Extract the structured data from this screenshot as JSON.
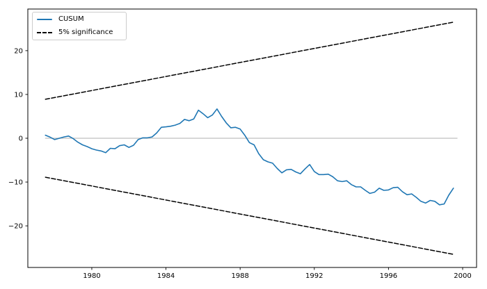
{
  "figure": {
    "background": "#ffffff",
    "frame_color": "#000000",
    "tick_label_color": "#000000"
  },
  "legend": {
    "position": "upper-left",
    "items": [
      {
        "label": "CUSUM",
        "line_style": "solid",
        "color": "#1f77b4"
      },
      {
        "label": "5% significance",
        "line_style": "dashed",
        "color": "#000000"
      }
    ]
  },
  "chart_data": {
    "type": "line",
    "title": "",
    "xlabel": "",
    "ylabel": "",
    "xlim": [
      1976.55,
      2000.75
    ],
    "ylim": [
      -29.5,
      29.5
    ],
    "xticks": [
      1980,
      1984,
      1988,
      1992,
      1996,
      2000
    ],
    "yticks": [
      -20,
      -10,
      0,
      10,
      20
    ],
    "grid": false,
    "legend_position": "upper-left",
    "series": [
      {
        "id": "zero-line",
        "name": "zero reference",
        "color": "#bfbfbf",
        "style": "solid",
        "width": 1.3,
        "x": [
          1977.5,
          1999.7
        ],
        "y": [
          0,
          0
        ]
      },
      {
        "id": "significance-upper",
        "name": "5% significance (upper)",
        "color": "#000000",
        "style": "dashed",
        "width": 1.5,
        "x": [
          1977.5,
          1999.5
        ],
        "y": [
          8.9,
          26.5
        ]
      },
      {
        "id": "significance-lower",
        "name": "5% significance (lower)",
        "color": "#000000",
        "style": "dashed",
        "width": 1.5,
        "x": [
          1977.5,
          1999.5
        ],
        "y": [
          -8.9,
          -26.5
        ]
      },
      {
        "id": "cusum",
        "name": "CUSUM",
        "color": "#1f77b4",
        "style": "solid",
        "width": 1.6,
        "x": [
          1977.5,
          1977.75,
          1978.0,
          1978.25,
          1978.5,
          1978.75,
          1979.0,
          1979.25,
          1979.5,
          1979.75,
          1980.0,
          1980.25,
          1980.5,
          1980.75,
          1981.0,
          1981.25,
          1981.5,
          1981.75,
          1982.0,
          1982.25,
          1982.5,
          1982.75,
          1983.0,
          1983.25,
          1983.5,
          1983.75,
          1984.0,
          1984.25,
          1984.5,
          1984.75,
          1985.0,
          1985.25,
          1985.5,
          1985.75,
          1986.0,
          1986.25,
          1986.5,
          1986.75,
          1987.0,
          1987.25,
          1987.5,
          1987.75,
          1988.0,
          1988.25,
          1988.5,
          1988.75,
          1989.0,
          1989.25,
          1989.5,
          1989.75,
          1990.0,
          1990.25,
          1990.5,
          1990.75,
          1991.0,
          1991.25,
          1991.5,
          1991.75,
          1992.0,
          1992.25,
          1992.5,
          1992.75,
          1993.0,
          1993.25,
          1993.5,
          1993.75,
          1994.0,
          1994.25,
          1994.5,
          1994.75,
          1995.0,
          1995.25,
          1995.5,
          1995.75,
          1996.0,
          1996.25,
          1996.5,
          1996.75,
          1997.0,
          1997.25,
          1997.5,
          1997.75,
          1998.0,
          1998.25,
          1998.5,
          1998.75,
          1999.0,
          1999.25,
          1999.5
        ],
        "y": [
          0.7,
          0.25,
          -0.3,
          0.0,
          0.3,
          0.5,
          -0.1,
          -0.9,
          -1.5,
          -1.9,
          -2.4,
          -2.7,
          -2.9,
          -3.3,
          -2.3,
          -2.4,
          -1.7,
          -1.5,
          -2.1,
          -1.6,
          -0.3,
          0.1,
          0.1,
          0.3,
          1.2,
          2.5,
          2.6,
          2.75,
          3.0,
          3.4,
          4.3,
          4.0,
          4.4,
          6.4,
          5.6,
          4.7,
          5.3,
          6.7,
          5.0,
          3.5,
          2.4,
          2.5,
          2.1,
          0.7,
          -1.0,
          -1.5,
          -3.5,
          -4.9,
          -5.4,
          -5.7,
          -6.9,
          -7.9,
          -7.2,
          -7.1,
          -7.7,
          -8.1,
          -7.0,
          -6.0,
          -7.6,
          -8.3,
          -8.3,
          -8.2,
          -8.8,
          -9.7,
          -9.9,
          -9.7,
          -10.6,
          -11.1,
          -11.1,
          -11.9,
          -12.6,
          -12.3,
          -11.4,
          -11.9,
          -11.8,
          -11.3,
          -11.2,
          -12.2,
          -12.9,
          -12.7,
          -13.5,
          -14.4,
          -14.8,
          -14.2,
          -14.4,
          -15.2,
          -15.0,
          -13.0,
          -11.4
        ]
      }
    ]
  }
}
